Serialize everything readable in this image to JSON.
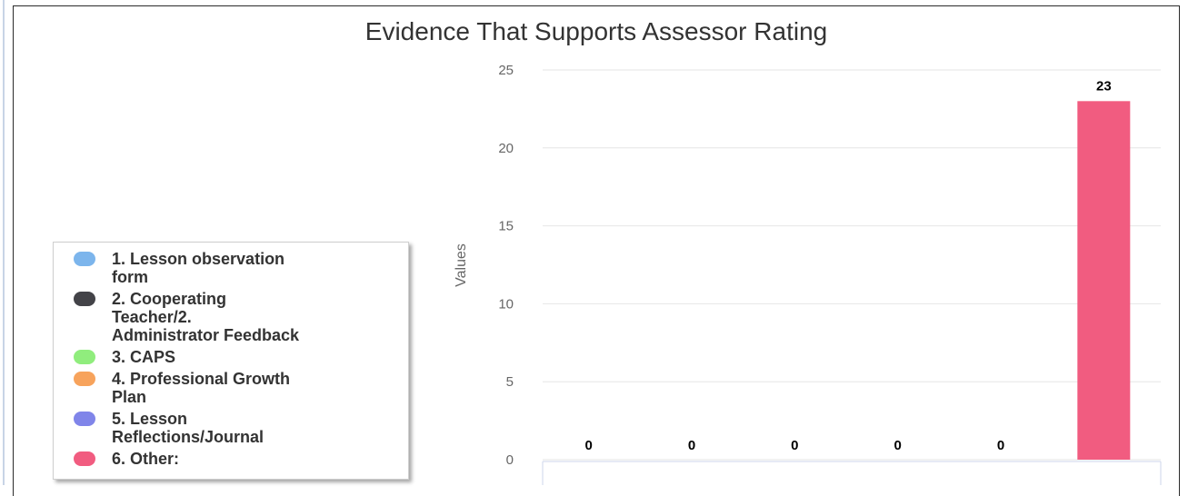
{
  "chart_data": {
    "type": "bar",
    "title": "Evidence That Supports Assessor Rating",
    "ylabel": "Values",
    "xlabel": "",
    "ylim": [
      0,
      25
    ],
    "yticks": [
      0,
      5,
      10,
      15,
      20,
      25
    ],
    "grid": true,
    "legend_position": "bottom-left",
    "categories": [
      "1. Lesson observation form",
      "2. Cooperating Teacher/2. Administrator Feedback",
      "3. CAPS",
      "4. Professional Growth Plan",
      "5. Lesson Reflections/Journal",
      "6. Other:"
    ],
    "values": [
      0,
      0,
      0,
      0,
      0,
      23
    ],
    "data_labels": [
      "0",
      "0",
      "0",
      "0",
      "0",
      "23"
    ],
    "colors": [
      "#7cb5ec",
      "#434348",
      "#90ed7d",
      "#f7a35c",
      "#8085e9",
      "#f15c80"
    ]
  },
  "legend": {
    "items": [
      {
        "lines": [
          "1. Lesson observation",
          "form"
        ],
        "color": "#7cb5ec"
      },
      {
        "lines": [
          "2. Cooperating",
          "Teacher/2.",
          "Administrator Feedback"
        ],
        "color": "#434348"
      },
      {
        "lines": [
          "3. CAPS"
        ],
        "color": "#90ed7d"
      },
      {
        "lines": [
          "4. Professional Growth",
          "Plan"
        ],
        "color": "#f7a35c"
      },
      {
        "lines": [
          "5. Lesson",
          "Reflections/Journal"
        ],
        "color": "#8085e9"
      },
      {
        "lines": [
          "6. Other:"
        ],
        "color": "#f15c80"
      }
    ]
  }
}
